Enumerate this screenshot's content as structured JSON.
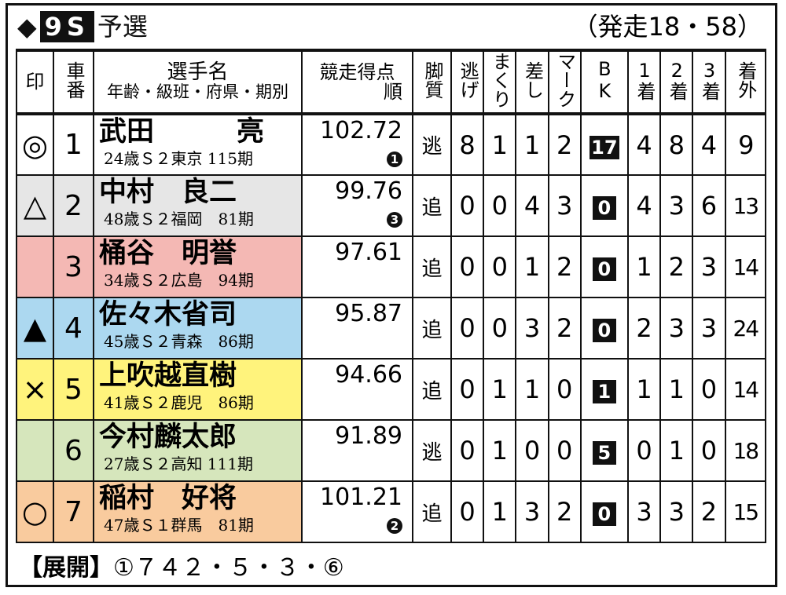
{
  "header": {
    "marker": "◆",
    "race": "9S",
    "race_type": "予選",
    "start_time": "（発走18・58）"
  },
  "columns": [
    "印",
    "車番",
    "選手名",
    "年齢・級班・府県・期別",
    "競走得点",
    "順",
    "脚質",
    "逃げ",
    "まくり",
    "差し",
    "マーク",
    "BK",
    "1着",
    "2着",
    "3着",
    "着外"
  ],
  "row_colors": [
    "#ffffff",
    "#e6e6e6",
    "#f4b8b4",
    "#acd8f0",
    "#fff37c",
    "#d6e6bc",
    "#f9cb9e"
  ],
  "rows": [
    {
      "mark": "◎",
      "num": "1",
      "name": "武田　　　亮",
      "info": "24歳Ｓ２東京 115期",
      "score": "102.72",
      "rank": "1",
      "style": "逃",
      "nige": "8",
      "makuri": "1",
      "sashi": "1",
      "mark_c": "2",
      "bk": "17",
      "p1": "4",
      "p2": "8",
      "p3": "4",
      "out": "9"
    },
    {
      "mark": "△",
      "num": "2",
      "name": "中村　良二",
      "info": "48歳Ｓ２福岡　81期",
      "score": "99.76",
      "rank": "3",
      "style": "追",
      "nige": "0",
      "makuri": "0",
      "sashi": "4",
      "mark_c": "3",
      "bk": "0",
      "p1": "4",
      "p2": "3",
      "p3": "6",
      "out": "13"
    },
    {
      "mark": "",
      "num": "3",
      "name": "桶谷　明誉",
      "info": "34歳Ｓ２広島　94期",
      "score": "97.61",
      "rank": "",
      "style": "追",
      "nige": "0",
      "makuri": "0",
      "sashi": "1",
      "mark_c": "2",
      "bk": "0",
      "p1": "1",
      "p2": "2",
      "p3": "3",
      "out": "14"
    },
    {
      "mark": "▲",
      "num": "4",
      "name": "佐々木省司",
      "info": "45歳Ｓ２青森　86期",
      "score": "95.87",
      "rank": "",
      "style": "追",
      "nige": "0",
      "makuri": "0",
      "sashi": "3",
      "mark_c": "2",
      "bk": "0",
      "p1": "2",
      "p2": "3",
      "p3": "3",
      "out": "24"
    },
    {
      "mark": "×",
      "num": "5",
      "name": "上吹越直樹",
      "info": "41歳Ｓ２鹿児　86期",
      "score": "94.66",
      "rank": "",
      "style": "追",
      "nige": "0",
      "makuri": "1",
      "sashi": "1",
      "mark_c": "0",
      "bk": "1",
      "p1": "1",
      "p2": "1",
      "p3": "0",
      "out": "14"
    },
    {
      "mark": "",
      "num": "6",
      "name": "今村麟太郎",
      "info": "27歳Ｓ２高知 111期",
      "score": "91.89",
      "rank": "",
      "style": "逃",
      "nige": "0",
      "makuri": "1",
      "sashi": "0",
      "mark_c": "0",
      "bk": "5",
      "p1": "0",
      "p2": "1",
      "p3": "0",
      "out": "18"
    },
    {
      "mark": "○",
      "num": "7",
      "name": "稲村　好将",
      "info": "47歳Ｓ１群馬　81期",
      "score": "101.21",
      "rank": "2",
      "style": "追",
      "nige": "0",
      "makuri": "1",
      "sashi": "3",
      "mark_c": "2",
      "bk": "0",
      "p1": "3",
      "p2": "3",
      "p3": "2",
      "out": "15"
    }
  ],
  "rank_glyphs": {
    "1": "❶",
    "2": "❷",
    "3": "❸"
  },
  "footer": {
    "label": "【展開】",
    "prediction": "①７４２・５・３・⑥"
  }
}
